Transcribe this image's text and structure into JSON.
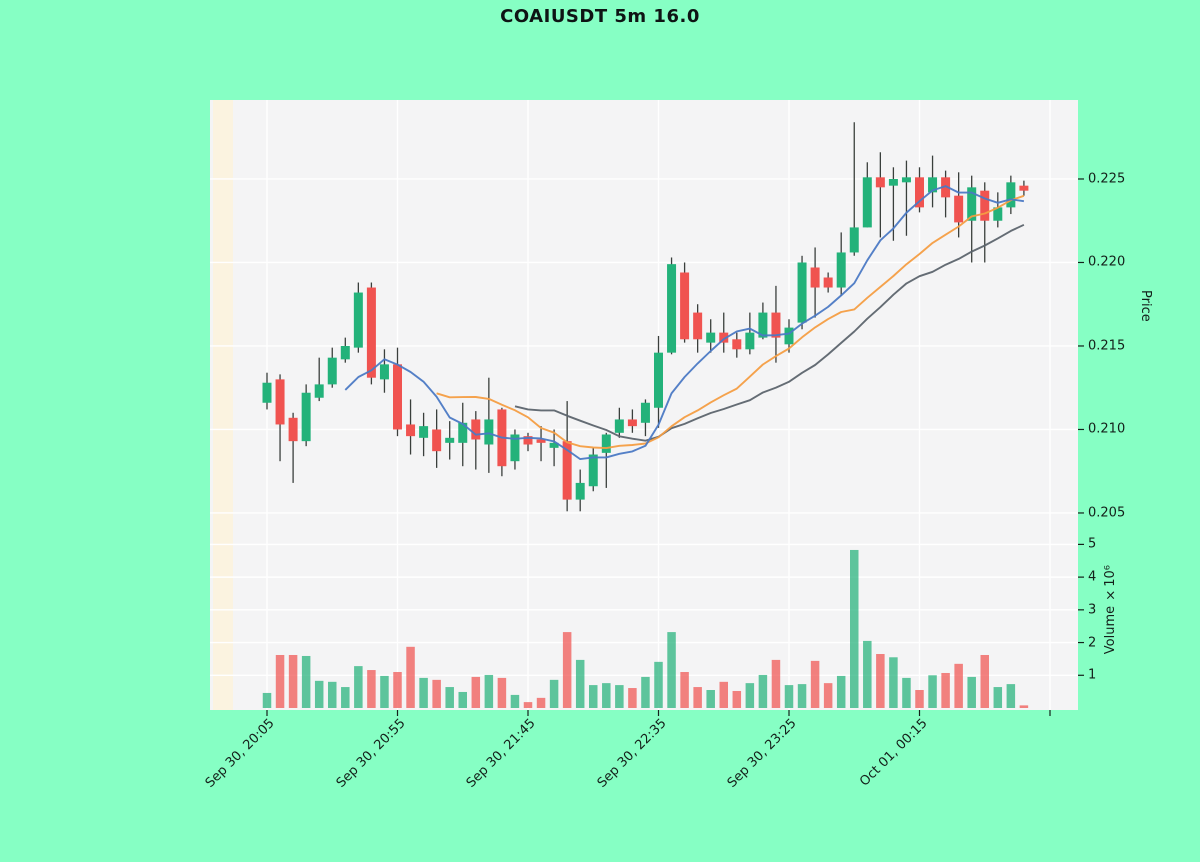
{
  "title": "COAIUSDT 5m 16.0",
  "colors": {
    "page_background": "#86ffc4",
    "plot_background": "#f4f4f5",
    "gridline": "#ffffff",
    "up_candle": "#23b27a",
    "down_candle": "#f05350",
    "wick": "#3a3f3c",
    "ma_fast": "#4b79c4",
    "ma_mid": "#f49d42",
    "ma_slow": "#5c646d",
    "text": "#14201a",
    "left_edge_band": "#fdf3d8"
  },
  "chart_data": {
    "type": "candlestick",
    "symbol": "COAIUSDT",
    "interval": "5m",
    "title": "COAIUSDT 5m 16.0",
    "legend_position": "none",
    "grid": true,
    "x_tick_labels": [
      "Sep 30, 20:05",
      "Sep 30, 20:55",
      "Sep 30, 21:45",
      "Sep 30, 22:35",
      "Sep 30, 23:25",
      "Oct 01, 00:15"
    ],
    "candles_per_x_tick": 10,
    "price_axis": {
      "label": "Price",
      "side": "right",
      "tick_labels": [
        "0.225",
        "0.220",
        "0.215",
        "0.210",
        "0.205"
      ],
      "tick_values": [
        0.225,
        0.22,
        0.215,
        0.21,
        0.205
      ],
      "ylim": [
        0.20398,
        0.22973
      ]
    },
    "volume_axis": {
      "label": "Volume ×10⁶",
      "side": "right",
      "tick_labels": [
        "5",
        "4",
        "3",
        "2",
        "1"
      ],
      "tick_values": [
        5,
        4,
        3,
        2,
        1
      ],
      "ylim": [
        0,
        5.44
      ]
    },
    "moving_averages": [
      {
        "name": "ma-fast",
        "period": 7,
        "color_key": "ma_fast"
      },
      {
        "name": "ma-mid",
        "period": 14,
        "color_key": "ma_mid"
      },
      {
        "name": "ma-slow",
        "period": 20,
        "color_key": "ma_slow"
      }
    ],
    "ohlcv_format": [
      "open",
      "high",
      "low",
      "close",
      "volume_millions"
    ],
    "candles": [
      [
        0.2116,
        0.2134,
        0.2112,
        0.2128,
        0.46
      ],
      [
        0.213,
        0.2133,
        0.2081,
        0.2103,
        1.62
      ],
      [
        0.2107,
        0.211,
        0.2068,
        0.2093,
        1.62
      ],
      [
        0.2093,
        0.2127,
        0.209,
        0.2122,
        1.59
      ],
      [
        0.2119,
        0.2143,
        0.2117,
        0.2127,
        0.83
      ],
      [
        0.2127,
        0.2149,
        0.2125,
        0.2143,
        0.8
      ],
      [
        0.2142,
        0.2155,
        0.214,
        0.215,
        0.64
      ],
      [
        0.2149,
        0.2188,
        0.2146,
        0.2182,
        1.28
      ],
      [
        0.2185,
        0.2188,
        0.2127,
        0.2131,
        1.16
      ],
      [
        0.213,
        0.2148,
        0.2122,
        0.2139,
        0.98
      ],
      [
        0.2139,
        0.2149,
        0.2096,
        0.21,
        1.1
      ],
      [
        0.2103,
        0.2118,
        0.2085,
        0.2096,
        1.87
      ],
      [
        0.2095,
        0.211,
        0.2084,
        0.2102,
        0.92
      ],
      [
        0.21,
        0.2112,
        0.2077,
        0.2087,
        0.86
      ],
      [
        0.2092,
        0.2105,
        0.2082,
        0.2095,
        0.64
      ],
      [
        0.2092,
        0.2116,
        0.2078,
        0.2104,
        0.49
      ],
      [
        0.2106,
        0.2111,
        0.2076,
        0.2094,
        0.95
      ],
      [
        0.2091,
        0.2131,
        0.2074,
        0.2106,
        1.01
      ],
      [
        0.2112,
        0.2113,
        0.2072,
        0.2078,
        0.92
      ],
      [
        0.2081,
        0.21,
        0.2076,
        0.2097,
        0.4
      ],
      [
        0.2096,
        0.2098,
        0.2087,
        0.2091,
        0.18
      ],
      [
        0.2094,
        0.2102,
        0.2081,
        0.2092,
        0.31
      ],
      [
        0.2089,
        0.21,
        0.2078,
        0.2092,
        0.86
      ],
      [
        0.2093,
        0.2117,
        0.2051,
        0.2058,
        2.32
      ],
      [
        0.2058,
        0.2076,
        0.2051,
        0.2068,
        1.47
      ],
      [
        0.2066,
        0.2089,
        0.2063,
        0.2085,
        0.7
      ],
      [
        0.2086,
        0.2098,
        0.2065,
        0.2097,
        0.76
      ],
      [
        0.2098,
        0.2113,
        0.2095,
        0.2106,
        0.7
      ],
      [
        0.2106,
        0.2112,
        0.2098,
        0.2102,
        0.61
      ],
      [
        0.2104,
        0.2118,
        0.2096,
        0.2116,
        0.95
      ],
      [
        0.2113,
        0.2156,
        0.2101,
        0.2146,
        1.41
      ],
      [
        0.2146,
        0.2203,
        0.2145,
        0.2199,
        2.32
      ],
      [
        0.2194,
        0.22,
        0.2152,
        0.2154,
        1.1
      ],
      [
        0.217,
        0.2175,
        0.2146,
        0.2154,
        0.64
      ],
      [
        0.2152,
        0.2166,
        0.2146,
        0.2158,
        0.55
      ],
      [
        0.2158,
        0.217,
        0.2146,
        0.2152,
        0.8
      ],
      [
        0.2154,
        0.2158,
        0.2143,
        0.2148,
        0.52
      ],
      [
        0.2148,
        0.217,
        0.2145,
        0.2158,
        0.76
      ],
      [
        0.2155,
        0.2176,
        0.2154,
        0.217,
        1.01
      ],
      [
        0.217,
        0.2186,
        0.214,
        0.2155,
        1.47
      ],
      [
        0.2151,
        0.2166,
        0.2146,
        0.2161,
        0.7
      ],
      [
        0.2164,
        0.2204,
        0.216,
        0.22,
        0.73
      ],
      [
        0.2197,
        0.2209,
        0.2167,
        0.2185,
        1.44
      ],
      [
        0.2191,
        0.2194,
        0.2182,
        0.2185,
        0.76
      ],
      [
        0.2185,
        0.2218,
        0.218,
        0.2206,
        0.98
      ],
      [
        0.2206,
        0.2284,
        0.2204,
        0.2221,
        4.83
      ],
      [
        0.2221,
        0.226,
        0.2221,
        0.2251,
        2.05
      ],
      [
        0.2251,
        0.2266,
        0.2215,
        0.2245,
        1.65
      ],
      [
        0.2246,
        0.2257,
        0.2213,
        0.225,
        1.55
      ],
      [
        0.2248,
        0.2261,
        0.2216,
        0.2251,
        0.92
      ],
      [
        0.2251,
        0.2257,
        0.223,
        0.2233,
        0.55
      ],
      [
        0.2242,
        0.2264,
        0.2233,
        0.2251,
        1.0
      ],
      [
        0.2251,
        0.2255,
        0.2227,
        0.2239,
        1.07
      ],
      [
        0.224,
        0.2254,
        0.2215,
        0.2224,
        1.35
      ],
      [
        0.2225,
        0.2252,
        0.22,
        0.2245,
        0.95
      ],
      [
        0.2243,
        0.2248,
        0.22,
        0.2225,
        1.62
      ],
      [
        0.2225,
        0.2242,
        0.2221,
        0.2233,
        0.64
      ],
      [
        0.2233,
        0.2252,
        0.2229,
        0.2248,
        0.73
      ],
      [
        0.2246,
        0.2249,
        0.224,
        0.2243,
        0.08
      ]
    ]
  }
}
